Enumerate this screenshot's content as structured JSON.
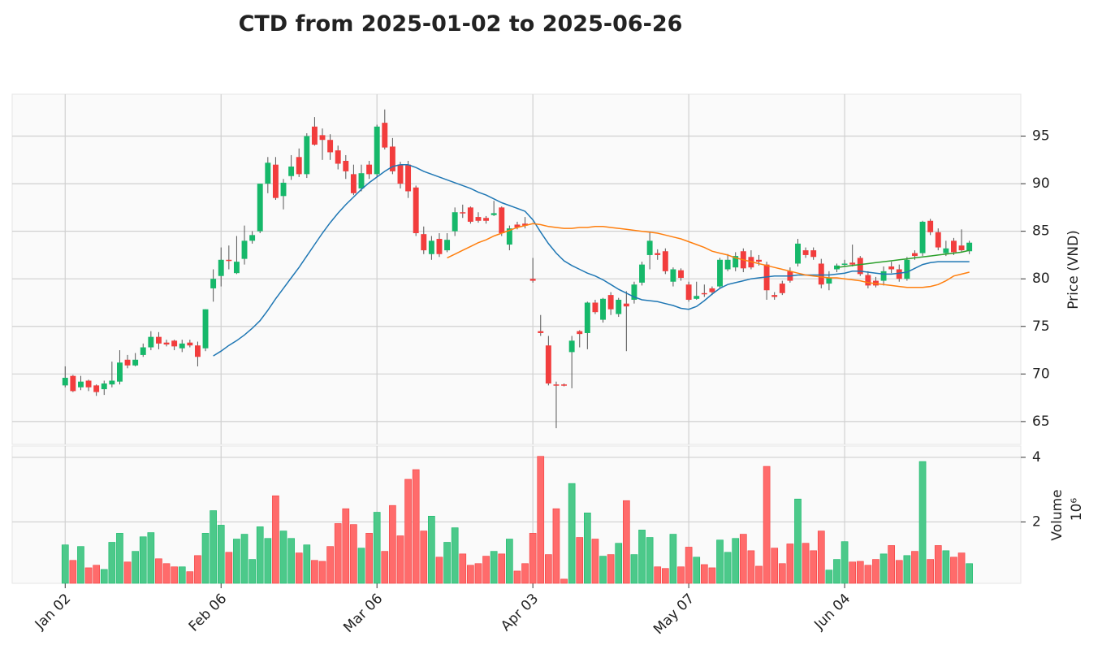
{
  "chart_data": {
    "type": "candlestick",
    "title": "CTD from 2025-01-02 to 2025-06-26",
    "ylabel": "Price (VND)",
    "volume_ylabel": "Volume",
    "volume_multiplier": "10⁶",
    "up_color": "#16b86a",
    "down_color": "#f23d3d",
    "volume_up_color": "#4cc98a",
    "volume_down_color": "#ff6b6b",
    "grid": true,
    "xlim": [
      -6.8,
      122.6
    ],
    "xticks": [
      {
        "value": 0,
        "label": "Jan 02"
      },
      {
        "value": 20,
        "label": "Feb 06"
      },
      {
        "value": 40,
        "label": "Mar 06"
      },
      {
        "value": 60,
        "label": "Apr 03"
      },
      {
        "value": 80,
        "label": "May 07"
      },
      {
        "value": 100,
        "label": "Jun 04"
      }
    ],
    "ylim": [
      62.6,
      99.4
    ],
    "yticks": [
      65,
      70,
      75,
      80,
      85,
      90,
      95
    ],
    "volume_ylim": [
      0.1,
      4.35
    ],
    "volume_yticks": [
      2,
      4
    ],
    "open": [
      68.8,
      69.8,
      68.6,
      69.3,
      68.8,
      68.4,
      68.9,
      69.2,
      71.5,
      70.9,
      72.0,
      72.8,
      73.9,
      73.3,
      73.5,
      72.7,
      73.3,
      73.0,
      72.7,
      79.0,
      80.3,
      82.0,
      80.6,
      82.1,
      84.0,
      85.0,
      90.0,
      92.0,
      88.7,
      90.8,
      92.8,
      91.0,
      96.0,
      95.1,
      94.6,
      93.5,
      92.4,
      91.0,
      89.5,
      92.0,
      91.0,
      96.4,
      93.9,
      92.0,
      92.0,
      89.6,
      84.7,
      82.6,
      84.2,
      83.0,
      85.0,
      87.0,
      87.5,
      86.5,
      86.4,
      86.7,
      87.5,
      83.6,
      85.7,
      85.8,
      80.0,
      74.5,
      73.0,
      68.9,
      68.9,
      72.3,
      74.5,
      74.3,
      77.5,
      75.7,
      78.3,
      76.3,
      77.4,
      77.8,
      79.6,
      82.5,
      82.7,
      82.9,
      79.7,
      80.9,
      79.4,
      77.9,
      78.5,
      79.0,
      79.2,
      81.0,
      81.2,
      82.9,
      82.3,
      82.0,
      81.5,
      78.3,
      79.5,
      80.8,
      81.6,
      83.0,
      83.0,
      81.6,
      79.5,
      81.0,
      81.5,
      81.7,
      82.2,
      80.4,
      79.8,
      79.8,
      81.3,
      81.0,
      80.0,
      82.7,
      82.7,
      86.1,
      84.9,
      82.7,
      84.0,
      83.5,
      82.9
    ],
    "high": [
      70.8,
      69.9,
      69.8,
      69.4,
      68.9,
      69.3,
      71.3,
      72.5,
      72.0,
      72.2,
      73.2,
      74.5,
      74.4,
      73.6,
      73.6,
      73.6,
      73.6,
      73.4,
      76.8,
      81.0,
      83.3,
      83.5,
      84.5,
      85.6,
      85.0,
      90.0,
      92.8,
      92.8,
      90.5,
      93.0,
      93.7,
      95.3,
      97.0,
      95.8,
      95.2,
      94.0,
      93.0,
      92.0,
      92.0,
      92.4,
      96.2,
      97.8,
      94.8,
      92.3,
      92.4,
      89.8,
      85.5,
      84.5,
      84.8,
      84.8,
      87.5,
      87.8,
      87.6,
      87.0,
      86.6,
      88.2,
      87.6,
      85.6,
      86.0,
      86.5,
      82.2,
      76.2,
      74.0,
      69.2,
      69.0,
      74.0,
      74.6,
      77.6,
      77.8,
      78.0,
      78.6,
      78.0,
      78.7,
      79.7,
      81.8,
      84.9,
      83.1,
      83.2,
      81.2,
      81.1,
      79.7,
      79.7,
      79.4,
      79.2,
      82.2,
      82.6,
      82.8,
      83.2,
      83.0,
      82.5,
      81.8,
      78.6,
      79.8,
      81.2,
      84.2,
      83.3,
      83.3,
      82.1,
      80.8,
      81.6,
      82.0,
      83.6,
      82.4,
      80.8,
      80.2,
      81.3,
      81.8,
      81.5,
      82.3,
      83.0,
      86.1,
      86.3,
      85.3,
      84.0,
      84.3,
      85.2,
      84.0
    ],
    "low": [
      68.6,
      68.1,
      68.3,
      68.2,
      67.7,
      67.8,
      68.6,
      68.9,
      70.6,
      70.8,
      71.8,
      72.5,
      72.6,
      72.9,
      72.5,
      72.3,
      72.8,
      70.8,
      72.4,
      77.6,
      79.2,
      81.0,
      80.5,
      81.5,
      83.7,
      84.8,
      89.0,
      88.3,
      87.3,
      90.4,
      90.7,
      90.6,
      94.0,
      92.5,
      92.5,
      91.5,
      90.5,
      88.8,
      89.2,
      90.5,
      90.7,
      93.6,
      91.0,
      89.5,
      88.5,
      84.5,
      82.6,
      82.0,
      82.3,
      82.8,
      84.5,
      86.4,
      85.8,
      85.9,
      85.8,
      86.6,
      84.5,
      83.0,
      85.2,
      85.3,
      79.6,
      74.0,
      68.8,
      64.3,
      68.7,
      68.5,
      72.8,
      72.6,
      76.3,
      75.4,
      76.2,
      76.0,
      72.4,
      77.4,
      79.3,
      81.0,
      82.0,
      80.5,
      79.2,
      79.8,
      77.6,
      77.8,
      78.1,
      78.3,
      79.0,
      80.8,
      80.8,
      80.7,
      81.0,
      81.4,
      77.8,
      77.8,
      78.3,
      79.6,
      81.3,
      82.2,
      82.0,
      79.0,
      78.8,
      80.7,
      81.3,
      81.3,
      80.3,
      79.0,
      79.1,
      79.3,
      80.6,
      79.7,
      79.8,
      82.0,
      82.4,
      84.6,
      83.0,
      82.4,
      82.5,
      82.8,
      82.6
    ],
    "close": [
      69.6,
      68.2,
      69.2,
      68.6,
      68.1,
      69.0,
      69.3,
      71.2,
      70.9,
      71.5,
      72.8,
      73.9,
      73.2,
      73.1,
      72.9,
      73.2,
      73.0,
      71.8,
      76.8,
      80.0,
      82.0,
      81.9,
      81.8,
      84.0,
      84.6,
      90.0,
      92.2,
      88.5,
      90.1,
      91.8,
      91.0,
      95.0,
      94.1,
      94.6,
      93.3,
      92.1,
      91.3,
      89.0,
      91.1,
      91.0,
      96.0,
      93.8,
      91.3,
      90.0,
      89.2,
      84.8,
      83.0,
      84.0,
      82.6,
      84.1,
      87.0,
      86.9,
      86.0,
      86.1,
      86.1,
      86.9,
      84.8,
      85.3,
      85.4,
      85.6,
      79.8,
      74.3,
      69.0,
      68.8,
      68.8,
      73.5,
      74.2,
      77.5,
      76.5,
      77.9,
      76.8,
      77.8,
      77.1,
      79.4,
      81.5,
      84.0,
      82.5,
      80.8,
      81.0,
      80.1,
      77.8,
      78.2,
      78.4,
      78.6,
      82.0,
      82.0,
      82.4,
      81.1,
      81.2,
      81.8,
      78.8,
      78.1,
      78.5,
      79.8,
      83.7,
      82.5,
      82.3,
      79.4,
      80.1,
      81.4,
      81.6,
      81.5,
      80.5,
      79.3,
      79.3,
      80.8,
      81.0,
      80.0,
      82.0,
      82.4,
      86.0,
      84.9,
      83.3,
      83.2,
      82.8,
      83.0,
      83.8
    ],
    "volume": [
      1.29,
      0.81,
      1.24,
      0.58,
      0.66,
      0.53,
      1.37,
      1.65,
      0.76,
      1.09,
      1.54,
      1.67,
      0.86,
      0.71,
      0.61,
      0.61,
      0.46,
      0.96,
      1.65,
      2.35,
      1.9,
      1.06,
      1.47,
      1.62,
      0.84,
      1.85,
      1.49,
      2.81,
      1.72,
      1.49,
      1.04,
      1.29,
      0.81,
      0.78,
      1.24,
      1.95,
      2.41,
      1.92,
      1.19,
      1.65,
      2.3,
      1.09,
      2.51,
      1.57,
      3.32,
      3.62,
      1.72,
      2.18,
      0.91,
      1.37,
      1.82,
      1.01,
      0.66,
      0.71,
      0.94,
      1.09,
      1.01,
      1.47,
      0.48,
      0.71,
      1.65,
      4.03,
      0.99,
      2.41,
      0.23,
      3.19,
      1.52,
      2.28,
      1.47,
      0.94,
      0.99,
      1.34,
      2.66,
      0.99,
      1.75,
      1.52,
      0.61,
      0.56,
      1.62,
      0.61,
      1.22,
      0.91,
      0.68,
      0.58,
      1.44,
      1.06,
      1.49,
      1.62,
      1.11,
      0.63,
      3.72,
      1.19,
      0.71,
      1.32,
      2.71,
      1.34,
      1.11,
      1.72,
      0.51,
      0.84,
      1.39,
      0.76,
      0.78,
      0.66,
      0.84,
      1.01,
      1.27,
      0.81,
      0.96,
      1.09,
      3.87,
      0.84,
      1.27,
      1.11,
      0.91,
      1.04,
      0.71
    ],
    "series": [
      {
        "color": "#1f77b4",
        "values": [
          null,
          null,
          null,
          null,
          null,
          null,
          null,
          null,
          null,
          null,
          null,
          null,
          null,
          null,
          null,
          null,
          null,
          null,
          null,
          71.9,
          72.4,
          73.0,
          73.5,
          74.1,
          74.8,
          75.6,
          76.7,
          77.9,
          79.0,
          80.1,
          81.2,
          82.4,
          83.6,
          84.8,
          85.9,
          86.9,
          87.8,
          88.6,
          89.4,
          90.1,
          90.7,
          91.3,
          91.8,
          92.0,
          92.0,
          91.7,
          91.3,
          91.0,
          90.7,
          90.4,
          90.1,
          89.8,
          89.5,
          89.1,
          88.8,
          88.4,
          88.0,
          87.7,
          87.4,
          87.1,
          86.2,
          84.9,
          83.7,
          82.7,
          81.9,
          81.4,
          81.0,
          80.6,
          80.3,
          79.9,
          79.4,
          78.9,
          78.5,
          78.1,
          77.8,
          77.7,
          77.6,
          77.4,
          77.2,
          76.9,
          76.8,
          77.1,
          77.7,
          78.4,
          79.0,
          79.4,
          79.6,
          79.8,
          80.0,
          80.1,
          80.2,
          80.3,
          80.3,
          80.3,
          80.4,
          80.4,
          80.4,
          80.4,
          80.4,
          80.5,
          80.6,
          80.8,
          80.8,
          80.7,
          80.6,
          80.5,
          80.5,
          80.6,
          80.7,
          81.1,
          81.5,
          81.7,
          81.8,
          81.8,
          81.8,
          81.8,
          81.8
        ]
      },
      {
        "color": "#ff7f0e",
        "values": [
          null,
          null,
          null,
          null,
          null,
          null,
          null,
          null,
          null,
          null,
          null,
          null,
          null,
          null,
          null,
          null,
          null,
          null,
          null,
          null,
          null,
          null,
          null,
          null,
          null,
          null,
          null,
          null,
          null,
          null,
          null,
          null,
          null,
          null,
          null,
          null,
          null,
          null,
          null,
          null,
          null,
          null,
          null,
          null,
          null,
          null,
          null,
          null,
          null,
          82.2,
          82.6,
          83.0,
          83.4,
          83.8,
          84.1,
          84.5,
          84.8,
          85.1,
          85.4,
          85.6,
          85.8,
          85.7,
          85.5,
          85.4,
          85.3,
          85.3,
          85.4,
          85.4,
          85.5,
          85.5,
          85.4,
          85.3,
          85.2,
          85.1,
          85.0,
          84.9,
          84.8,
          84.6,
          84.4,
          84.2,
          83.9,
          83.6,
          83.3,
          82.9,
          82.7,
          82.5,
          82.2,
          82.0,
          81.8,
          81.6,
          81.4,
          81.2,
          81.0,
          80.8,
          80.6,
          80.4,
          80.3,
          80.2,
          80.1,
          80.1,
          80.0,
          79.9,
          79.8,
          79.6,
          79.5,
          79.4,
          79.3,
          79.2,
          79.1,
          79.1,
          79.1,
          79.2,
          79.4,
          79.8,
          80.3,
          80.5,
          80.7
        ]
      },
      {
        "color": "#2ca02c",
        "values": [
          null,
          null,
          null,
          null,
          null,
          null,
          null,
          null,
          null,
          null,
          null,
          null,
          null,
          null,
          null,
          null,
          null,
          null,
          null,
          null,
          null,
          null,
          null,
          null,
          null,
          null,
          null,
          null,
          null,
          null,
          null,
          null,
          null,
          null,
          null,
          null,
          null,
          null,
          null,
          null,
          null,
          null,
          null,
          null,
          null,
          null,
          null,
          null,
          null,
          null,
          null,
          null,
          null,
          null,
          null,
          null,
          null,
          null,
          null,
          null,
          null,
          null,
          null,
          null,
          null,
          null,
          null,
          null,
          null,
          null,
          null,
          null,
          null,
          null,
          null,
          null,
          null,
          null,
          null,
          null,
          null,
          null,
          null,
          null,
          null,
          null,
          null,
          null,
          null,
          null,
          null,
          null,
          null,
          null,
          null,
          null,
          null,
          null,
          null,
          81.2,
          81.3,
          81.4,
          81.5,
          81.6,
          81.7,
          81.8,
          81.9,
          82.0,
          82.1,
          82.2,
          82.3,
          82.4,
          82.5,
          82.6,
          82.7,
          82.8,
          83.0
        ]
      }
    ]
  }
}
